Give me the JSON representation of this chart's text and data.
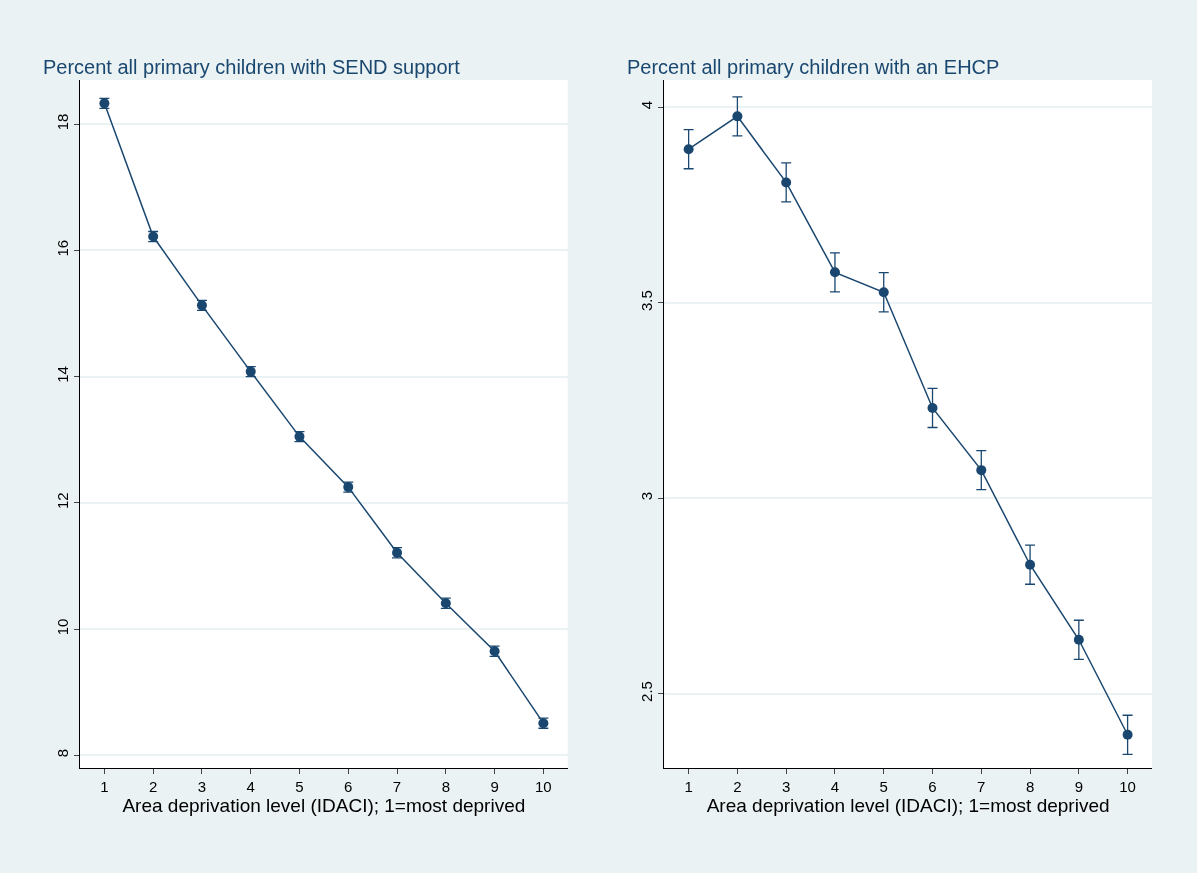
{
  "chart_data": [
    {
      "type": "line",
      "title": "Percent all primary children with SEND support",
      "xlabel": "Area deprivation level (IDACI); 1=most deprived",
      "x": [
        1,
        2,
        3,
        4,
        5,
        6,
        7,
        8,
        9,
        10
      ],
      "series": [
        {
          "color": "#1a476f",
          "values": [
            18.33,
            16.22,
            15.13,
            14.08,
            13.05,
            12.25,
            11.21,
            10.41,
            9.65,
            8.51
          ],
          "errors": [
            0.08,
            0.08,
            0.08,
            0.08,
            0.08,
            0.08,
            0.08,
            0.08,
            0.08,
            0.08
          ]
        }
      ],
      "xlim": [
        0.5,
        10.5
      ],
      "xticks": [
        1,
        2,
        3,
        4,
        5,
        6,
        7,
        8,
        9,
        10
      ],
      "ylim": [
        7.8,
        18.7
      ],
      "yticks": [
        8,
        10,
        12,
        14,
        16,
        18
      ],
      "grid": "y",
      "marker": "circle",
      "line_style": "solid"
    },
    {
      "type": "line",
      "title": "Percent all primary children with an EHCP",
      "xlabel": "Area deprivation level (IDACI); 1=most deprived",
      "x": [
        1,
        2,
        3,
        4,
        5,
        6,
        7,
        8,
        9,
        10
      ],
      "series": [
        {
          "color": "#1a476f",
          "values": [
            3.893,
            3.977,
            3.808,
            3.578,
            3.527,
            3.231,
            3.072,
            2.83,
            2.638,
            2.395
          ],
          "errors": [
            0.05,
            0.05,
            0.05,
            0.05,
            0.05,
            0.05,
            0.05,
            0.05,
            0.05,
            0.05
          ]
        }
      ],
      "xlim": [
        0.5,
        10.5
      ],
      "xticks": [
        1,
        2,
        3,
        4,
        5,
        6,
        7,
        8,
        9,
        10
      ],
      "ylim": [
        2.31,
        4.07
      ],
      "yticks": [
        2.5,
        3,
        3.5,
        4
      ],
      "grid": "y",
      "marker": "circle",
      "line_style": "solid"
    }
  ]
}
